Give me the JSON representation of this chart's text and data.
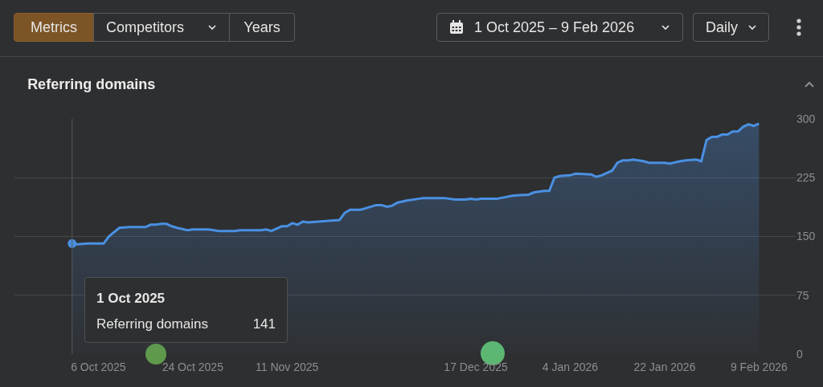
{
  "chart_data": {
    "type": "area",
    "title": "Referring domains",
    "annotations": [
      "Metrics",
      "Competitors",
      "Years",
      "1 Oct 2025 – 9 Feb 2026",
      "Daily",
      "1 Oct 2025",
      "Referring domains",
      "141"
    ],
    "x": [
      "2025-10-01",
      "2025-10-02",
      "2025-10-04",
      "2025-10-07",
      "2025-10-08",
      "2025-10-10",
      "2025-10-12",
      "2025-10-15",
      "2025-10-16",
      "2025-10-17",
      "2025-10-18",
      "2025-10-19",
      "2025-10-20",
      "2025-10-21",
      "2025-10-23",
      "2025-10-24",
      "2025-10-27",
      "2025-10-29",
      "2025-11-01",
      "2025-11-02",
      "2025-11-06",
      "2025-11-07",
      "2025-11-08",
      "2025-11-10",
      "2025-11-11",
      "2025-11-12",
      "2025-11-13",
      "2025-11-14",
      "2025-11-15",
      "2025-11-17",
      "2025-11-19",
      "2025-11-21",
      "2025-11-22",
      "2025-11-23",
      "2025-11-25",
      "2025-11-26",
      "2025-11-28",
      "2025-11-29",
      "2025-11-30",
      "2025-12-01",
      "2025-12-02",
      "2025-12-04",
      "2025-12-07",
      "2025-12-11",
      "2025-12-13",
      "2025-12-15",
      "2025-12-16",
      "2025-12-17",
      "2025-12-18",
      "2025-12-21",
      "2025-12-24",
      "2025-12-26",
      "2025-12-27",
      "2025-12-28",
      "2025-12-30",
      "2025-12-31",
      "2026-01-01",
      "2026-01-02",
      "2026-01-04",
      "2026-01-05",
      "2026-01-08",
      "2026-01-09",
      "2026-01-10",
      "2026-01-12",
      "2026-01-13",
      "2026-01-14",
      "2026-01-15",
      "2026-01-16",
      "2026-01-18",
      "2026-01-19",
      "2026-01-22",
      "2026-01-23",
      "2026-01-25",
      "2026-01-26",
      "2026-01-28",
      "2026-01-29",
      "2026-01-30",
      "2026-01-31",
      "2026-02-01",
      "2026-02-02",
      "2026-02-03",
      "2026-02-04",
      "2026-02-05",
      "2026-02-06",
      "2026-02-07",
      "2026-02-08",
      "2026-02-09"
    ],
    "series": [
      {
        "color": "#4a90e2",
        "values": [
          141,
          140,
          141,
          141,
          150,
          161,
          162,
          162,
          165,
          165,
          166,
          166,
          163,
          161,
          158,
          159,
          159,
          157,
          157,
          158,
          158,
          159,
          157,
          163,
          163,
          167,
          165,
          169,
          168,
          169,
          170,
          171,
          180,
          184,
          184,
          186,
          190,
          190,
          188,
          189,
          193,
          196,
          199,
          199,
          197,
          197,
          198,
          197,
          198,
          198,
          202,
          203,
          203,
          206,
          208,
          208,
          225,
          227,
          228,
          230,
          229,
          226,
          228,
          234,
          244,
          247,
          247,
          248,
          246,
          244,
          244,
          243,
          246,
          247,
          248,
          246,
          273,
          277,
          277,
          280,
          280,
          284,
          284,
          290,
          293,
          291,
          294
        ]
      }
    ],
    "xlim": [
      "2025-09-20",
      "2026-02-16"
    ],
    "xticks": [
      {
        "value": "2025-10-06",
        "label": "6 Oct 2025"
      },
      {
        "value": "2025-10-24",
        "label": "24 Oct 2025"
      },
      {
        "value": "2025-11-11",
        "label": "11 Nov 2025"
      },
      {
        "value": "2025-12-17",
        "label": "17 Dec 2025"
      },
      {
        "value": "2026-01-04",
        "label": "4 Jan 2026"
      },
      {
        "value": "2026-01-22",
        "label": "22 Jan 2026"
      },
      {
        "value": "2026-02-09",
        "label": "9 Feb 2026"
      }
    ],
    "ylim": [
      0,
      300
    ],
    "yticks": [
      0,
      75,
      150,
      225,
      300
    ],
    "ref_lines": [
      {
        "axis": "x",
        "value": "2025-10-01",
        "color": "#55575a"
      }
    ],
    "grid": "y",
    "marker": "none",
    "line_style": "solid"
  }
}
